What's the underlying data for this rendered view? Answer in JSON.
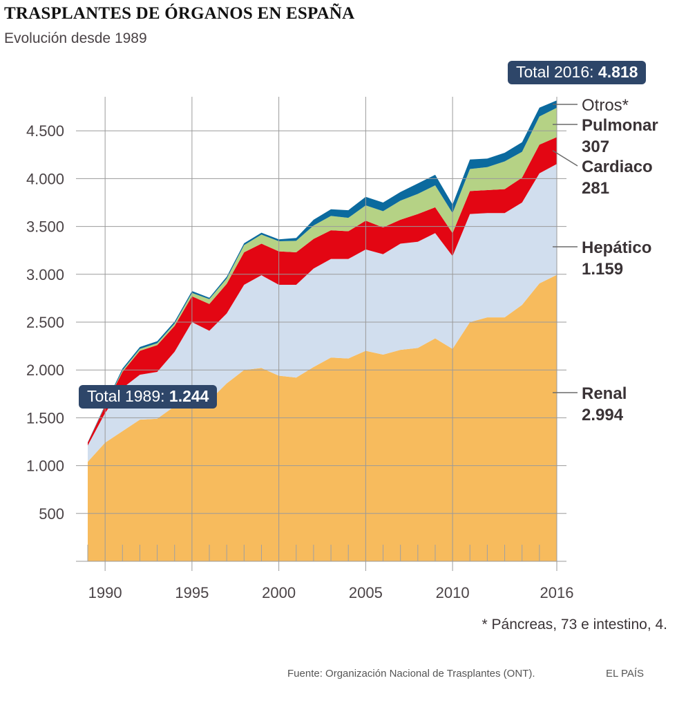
{
  "header": {
    "title": "TRASPLANTES DE ÓRGANOS EN ESPAÑA",
    "subtitle": "Evolución desde 1989"
  },
  "badges": {
    "total_2016_label": "Total 2016: ",
    "total_2016_value": "4.818",
    "total_1989_label": "Total 1989: ",
    "total_1989_value": "1.244"
  },
  "footer": {
    "note": "* Páncreas, 73 e intestino, 4.",
    "source": "Fuente: Organización Nacional de Trasplantes (ONT).",
    "brand": "EL PAÍS"
  },
  "chart_data": {
    "type": "area",
    "stacked": true,
    "title": "TRASPLANTES DE ÓRGANOS EN ESPAÑA",
    "subtitle": "Evolución desde 1989",
    "xlabel": "",
    "ylabel": "",
    "x": [
      1989,
      1990,
      1991,
      1992,
      1993,
      1994,
      1995,
      1996,
      1997,
      1998,
      1999,
      2000,
      2001,
      2002,
      2003,
      2004,
      2005,
      2006,
      2007,
      2008,
      2009,
      2010,
      2011,
      2012,
      2013,
      2014,
      2015,
      2016
    ],
    "x_tick_labels": [
      "1990",
      "1995",
      "2000",
      "2005",
      "2010",
      "2016"
    ],
    "x_ticks": [
      1990,
      1995,
      2000,
      2005,
      2010,
      2016
    ],
    "y_tick_labels": [
      "500",
      "1.000",
      "1.500",
      "2.000",
      "2.500",
      "3.000",
      "3.500",
      "4.000",
      "4.500"
    ],
    "y_ticks": [
      500,
      1000,
      1500,
      2000,
      2500,
      3000,
      3500,
      4000,
      4500
    ],
    "ylim": [
      0,
      4900
    ],
    "xlim": [
      1989,
      2016
    ],
    "grid": true,
    "series": [
      {
        "name": "Renal",
        "color": "#f7bb5d",
        "values": [
          1040,
          1240,
          1360,
          1480,
          1490,
          1620,
          1770,
          1680,
          1860,
          2000,
          2020,
          1940,
          1920,
          2030,
          2130,
          2120,
          2200,
          2160,
          2210,
          2230,
          2330,
          2220,
          2500,
          2550,
          2550,
          2680,
          2905,
          2994
        ]
      },
      {
        "name": "Hepático",
        "color": "#d1deee",
        "values": [
          170,
          310,
          450,
          470,
          490,
          570,
          730,
          730,
          730,
          890,
          970,
          950,
          970,
          1030,
          1030,
          1040,
          1060,
          1050,
          1110,
          1110,
          1100,
          970,
          1130,
          1090,
          1090,
          1070,
          1150,
          1159
        ]
      },
      {
        "name": "Cardiaco",
        "color": "#e30613",
        "values": [
          30,
          70,
          170,
          250,
          280,
          270,
          270,
          280,
          310,
          340,
          330,
          350,
          340,
          310,
          300,
          290,
          300,
          280,
          250,
          290,
          270,
          240,
          240,
          240,
          250,
          260,
          300,
          281
        ]
      },
      {
        "name": "Pulmonar",
        "color": "#b5d285",
        "values": [
          0,
          5,
          15,
          20,
          20,
          25,
          35,
          50,
          55,
          75,
          95,
          105,
          120,
          140,
          150,
          140,
          160,
          170,
          200,
          210,
          230,
          210,
          230,
          240,
          290,
          270,
          295,
          307
        ]
      },
      {
        "name": "Otros*",
        "color": "#0b6a9e",
        "values": [
          4,
          10,
          20,
          20,
          20,
          20,
          20,
          15,
          20,
          20,
          20,
          20,
          30,
          60,
          70,
          80,
          90,
          90,
          90,
          110,
          110,
          90,
          100,
          90,
          90,
          100,
          92,
          77
        ]
      }
    ],
    "annotations": [
      {
        "text": "Total 2016: 4.818",
        "x": 2016
      },
      {
        "text": "Total 1989: 1.244",
        "x": 1989
      },
      {
        "text": "Otros*",
        "series": "Otros*"
      },
      {
        "text": "Pulmonar 307",
        "series": "Pulmonar"
      },
      {
        "text": "Cardiaco 281",
        "series": "Cardiaco"
      },
      {
        "text": "Hepático 1.159",
        "series": "Hepático"
      },
      {
        "text": "Renal 2.994",
        "series": "Renal"
      }
    ],
    "end_labels": [
      {
        "series": "Otros*",
        "name": "Otros*",
        "value": ""
      },
      {
        "series": "Pulmonar",
        "name": "Pulmonar",
        "value": "307"
      },
      {
        "series": "Cardiaco",
        "name": "Cardiaco",
        "value": "281"
      },
      {
        "series": "Hepático",
        "name": "Hepático",
        "value": "1.159"
      },
      {
        "series": "Renal",
        "name": "Renal",
        "value": "2.994"
      }
    ],
    "legend": "right-end-labels"
  }
}
